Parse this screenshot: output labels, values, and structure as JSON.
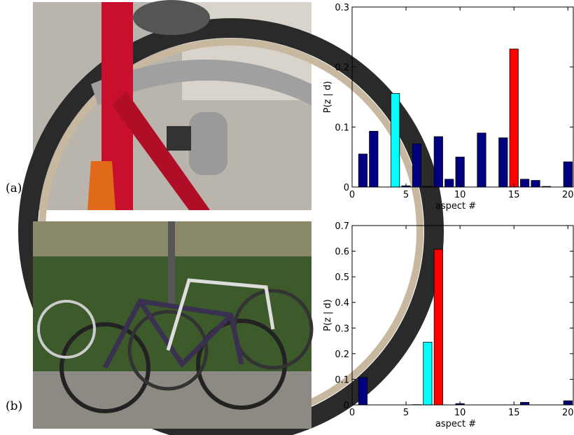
{
  "labels": [
    "(a)",
    "(b)"
  ],
  "chart_data": [
    {
      "type": "bar",
      "xlabel": "aspect #",
      "ylabel": "P(z | d)",
      "x": [
        1,
        2,
        3,
        4,
        5,
        6,
        7,
        8,
        9,
        10,
        11,
        12,
        13,
        14,
        15,
        16,
        17,
        18,
        19,
        20
      ],
      "values": [
        0.055,
        0.093,
        0,
        0.156,
        0.002,
        0.072,
        0.001,
        0.084,
        0.013,
        0.05,
        0,
        0.09,
        0,
        0.082,
        0.23,
        0.013,
        0.011,
        0.001,
        0,
        0.042
      ],
      "colors": [
        "#000080",
        "#000080",
        "#000080",
        "#00ffff",
        "#000080",
        "#000080",
        "#000080",
        "#000080",
        "#000080",
        "#000080",
        "#000080",
        "#000080",
        "#000080",
        "#000080",
        "#ff0000",
        "#000080",
        "#000080",
        "#000080",
        "#000080",
        "#000080"
      ],
      "xlim": [
        0,
        20.5
      ],
      "xticks": [
        0,
        5,
        10,
        15,
        20
      ],
      "ylim": [
        0,
        0.3
      ],
      "yticks": [
        0,
        0.1,
        0.2,
        0.3
      ]
    },
    {
      "type": "bar",
      "xlabel": "aspect #",
      "ylabel": "P(z | d)",
      "x": [
        1,
        2,
        3,
        4,
        5,
        6,
        7,
        8,
        9,
        10,
        11,
        12,
        13,
        14,
        15,
        16,
        17,
        18,
        19,
        20
      ],
      "values": [
        0.107,
        0,
        0,
        0,
        0,
        0.001,
        0.245,
        0.607,
        0,
        0.005,
        0,
        0,
        0,
        0,
        0,
        0.01,
        0,
        0,
        0,
        0.016
      ],
      "colors": [
        "#000080",
        "#000080",
        "#000080",
        "#000080",
        "#000080",
        "#000080",
        "#00ffff",
        "#ff0000",
        "#000080",
        "#000080",
        "#000080",
        "#000080",
        "#000080",
        "#000080",
        "#000080",
        "#000080",
        "#000080",
        "#000080",
        "#000080",
        "#000080"
      ],
      "xlim": [
        0,
        20.5
      ],
      "xticks": [
        0,
        5,
        10,
        15,
        20
      ],
      "ylim": [
        0,
        0.7
      ],
      "yticks": [
        0,
        0.1,
        0.2,
        0.3,
        0.4,
        0.5,
        0.6,
        0.7
      ]
    }
  ]
}
